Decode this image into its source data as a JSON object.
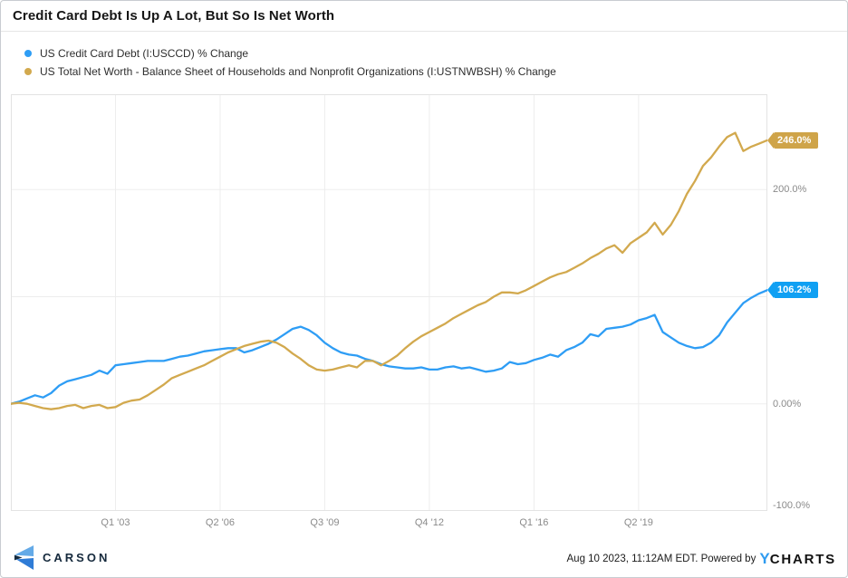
{
  "header": {
    "title": "Credit Card Debt Is Up A Lot, But So Is Net Worth"
  },
  "legend": [
    {
      "label": "US Credit Card Debt (I:USCCD) % Change",
      "color": "#2e9df5"
    },
    {
      "label": "US Total Net Worth - Balance Sheet of Households and Nonprofit Organizations (I:USTNWBSH) % Change",
      "color": "#d2a94e"
    }
  ],
  "chart_data": {
    "type": "line",
    "title": "Credit Card Debt Is Up A Lot, But So Is Net Worth",
    "x_unit": "quarters, 2000Q1 through 2023Q2",
    "x_tick_labels": [
      "Q1 '03",
      "Q2 '06",
      "Q3 '09",
      "Q4 '12",
      "Q1 '16",
      "Q2 '19"
    ],
    "x_tick_indices": [
      13,
      26,
      39,
      52,
      65,
      78
    ],
    "ylim": [
      -100,
      289
    ],
    "y_gridlines": [
      200,
      100,
      0
    ],
    "y_axis_labels": [
      "200.0%",
      "0.00%",
      "-100.0%"
    ],
    "grid": true,
    "legend_position": "top-left",
    "series": [
      {
        "name": "US Credit Card Debt (I:USCCD) % Change",
        "color": "#2e9df5",
        "end_label": "106.2%",
        "end_value": 106.2,
        "values": [
          0,
          2,
          5,
          8,
          6,
          10,
          17,
          21,
          23,
          25,
          27,
          31,
          28,
          36,
          37,
          38,
          39,
          40,
          40,
          40,
          42,
          44,
          45,
          47,
          49,
          50,
          51,
          52,
          52,
          48,
          50,
          53,
          56,
          60,
          65,
          70,
          72,
          69,
          64,
          57,
          52,
          48,
          46,
          45,
          42,
          40,
          37,
          35,
          34,
          33,
          33,
          34,
          32,
          32,
          34,
          35,
          33,
          34,
          32,
          30,
          31,
          33,
          39,
          37,
          38,
          41,
          43,
          46,
          44,
          50,
          53,
          57,
          65,
          63,
          70,
          71,
          72,
          74,
          78,
          80,
          83,
          67,
          62,
          57,
          54,
          52,
          53,
          57,
          64,
          76,
          85,
          94,
          99,
          103,
          106.2
        ]
      },
      {
        "name": "US Total Net Worth - Balance Sheet of Households and Nonprofit Organizations (I:USTNWBSH) % Change",
        "color": "#d2a94e",
        "end_label": "246.0%",
        "end_value": 246.0,
        "values": [
          0,
          1,
          0,
          -2,
          -4,
          -5,
          -4,
          -2,
          -1,
          -4,
          -2,
          -1,
          -4,
          -3,
          1,
          3,
          4,
          8,
          13,
          18,
          24,
          27,
          30,
          33,
          36,
          40,
          44,
          48,
          51,
          54,
          56,
          58,
          59,
          57,
          53,
          47,
          42,
          36,
          32,
          31,
          32,
          34,
          36,
          34,
          40,
          40,
          36,
          40,
          45,
          52,
          58,
          63,
          67,
          71,
          75,
          80,
          84,
          88,
          92,
          95,
          100,
          104,
          104,
          103,
          106,
          110,
          114,
          118,
          121,
          123,
          127,
          131,
          136,
          140,
          145,
          148,
          141,
          150,
          155,
          160,
          169,
          158,
          167,
          180,
          196,
          208,
          222,
          230,
          240,
          249,
          253,
          236,
          240,
          243,
          246
        ]
      }
    ]
  },
  "footer": {
    "brand": "CARSON",
    "timestamp": "Aug 10 2023, 11:12AM EDT. Powered by",
    "ycharts_y": "Y",
    "ycharts_rest": "CHARTS"
  }
}
